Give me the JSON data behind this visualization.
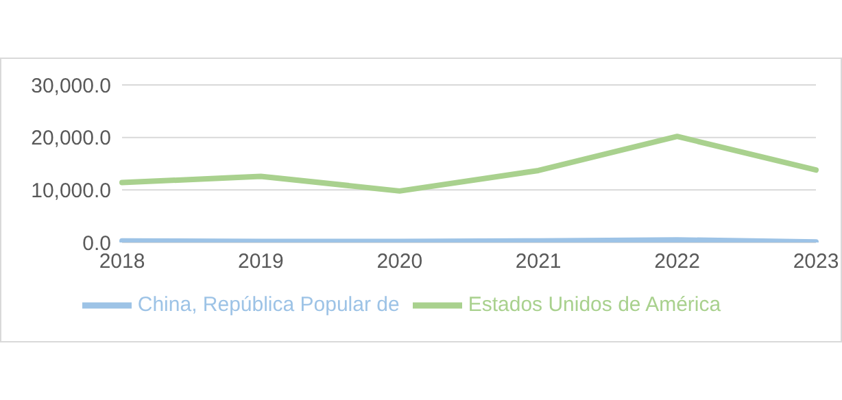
{
  "chart_data": {
    "type": "line",
    "categories": [
      "2018",
      "2019",
      "2020",
      "2021",
      "2022",
      "2023"
    ],
    "series": [
      {
        "name": "Estados Unidos de América",
        "color": "#a9d18e",
        "values": [
          11400,
          12600,
          9800,
          13700,
          20200,
          13800
        ]
      },
      {
        "name": "China, República Popular de",
        "color": "#9dc3e6",
        "values": [
          300,
          200,
          200,
          300,
          500,
          100
        ]
      }
    ],
    "ylim": [
      0,
      30000
    ],
    "yticks": [
      {
        "value": 0,
        "label": "0.0"
      },
      {
        "value": 10000,
        "label": "10,000.0"
      },
      {
        "value": 20000,
        "label": "20,000.0"
      },
      {
        "value": 30000,
        "label": "30,000.0"
      }
    ],
    "grid": "y",
    "legend": "bottom",
    "marker": "none",
    "line_style": "solid"
  }
}
